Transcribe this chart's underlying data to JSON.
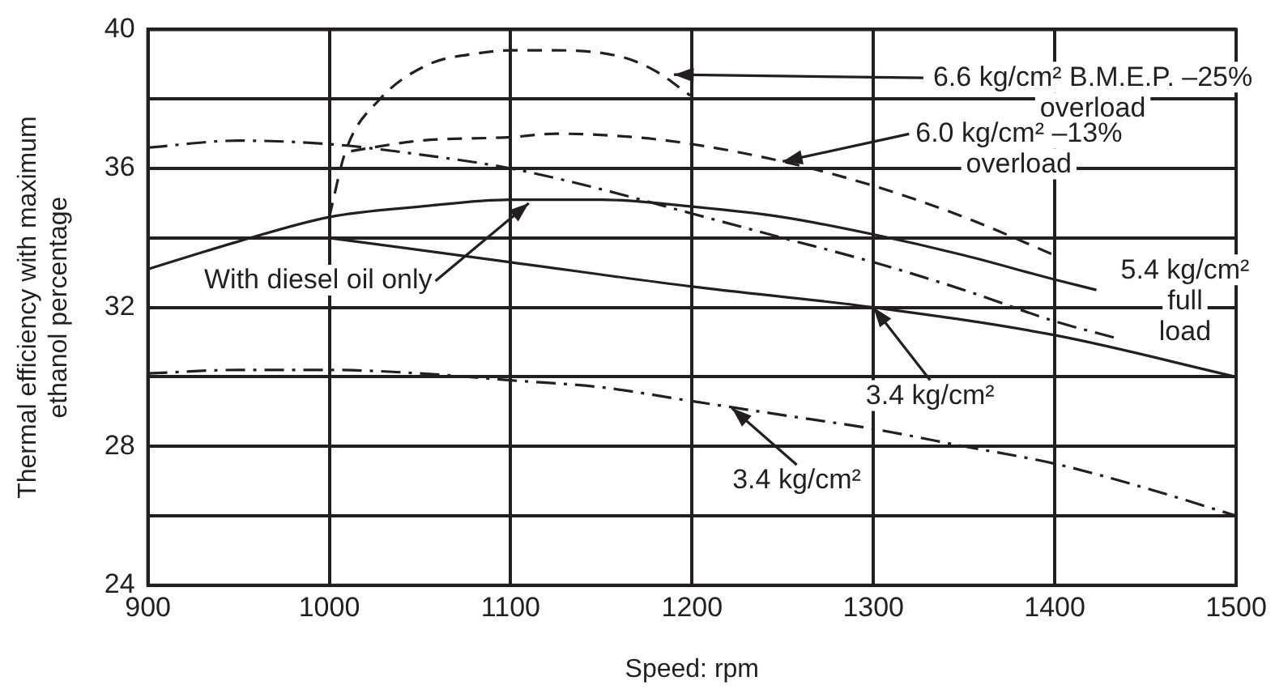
{
  "chart_data": {
    "type": "line",
    "xlabel": "Speed: rpm",
    "ylabel": "Thermal efficiency with maximum\nethanol percentage",
    "xlim": [
      900,
      1500
    ],
    "xticks": [
      900,
      1000,
      1100,
      1200,
      1300,
      1400,
      1500
    ],
    "ylim": [
      24,
      40
    ],
    "yticks": [
      24,
      {
        "value": 26,
        "label": null
      },
      28,
      {
        "value": 30,
        "label": null
      },
      32,
      {
        "value": 34,
        "label": null
      },
      36,
      {
        "value": 38,
        "label": null
      },
      40
    ],
    "grid": true,
    "legend": false,
    "marker": "none",
    "series": [
      {
        "color": "#231f20",
        "line_style": "dashed",
        "x": [
          1000,
          1009,
          1028,
          1055,
          1080,
          1101,
          1125,
          1162,
          1180,
          1199
        ],
        "values": [
          34.6,
          36.5,
          38.0,
          39.0,
          39.3,
          39.4,
          39.4,
          39.2,
          38.8,
          38.1
        ]
      },
      {
        "color": "#231f20",
        "line_style": "dashed",
        "x": [
          1012,
          1050,
          1100,
          1125,
          1168,
          1200,
          1250,
          1300,
          1350,
          1400
        ],
        "values": [
          36.5,
          36.8,
          36.9,
          37.0,
          36.9,
          36.7,
          36.2,
          35.5,
          34.6,
          33.5
        ]
      },
      {
        "color": "#231f20",
        "line_style": "solid",
        "x": [
          900,
          950,
          1000,
          1050,
          1100,
          1150,
          1200,
          1250,
          1300,
          1350,
          1400,
          1423
        ],
        "values": [
          33.1,
          33.9,
          34.6,
          34.9,
          35.1,
          35.1,
          34.9,
          34.6,
          34.1,
          33.5,
          32.8,
          32.5
        ]
      },
      {
        "color": "#231f20",
        "line_style": "dashdot",
        "x": [
          900,
          950,
          1000,
          1050,
          1100,
          1150,
          1200,
          1250,
          1300,
          1350,
          1400,
          1435
        ],
        "values": [
          36.6,
          36.8,
          36.7,
          36.4,
          36.0,
          35.4,
          34.7,
          34.0,
          33.3,
          32.5,
          31.6,
          31.1
        ]
      },
      {
        "color": "#231f20",
        "line_style": "solid",
        "x": [
          1000,
          1100,
          1200,
          1300,
          1400,
          1500
        ],
        "values": [
          34.0,
          33.3,
          32.6,
          32.0,
          31.2,
          30.0
        ]
      },
      {
        "color": "#231f20",
        "line_style": "dashdot",
        "x": [
          900,
          950,
          1000,
          1050,
          1100,
          1150,
          1200,
          1250,
          1300,
          1350,
          1400,
          1450,
          1500
        ],
        "values": [
          30.1,
          30.2,
          30.2,
          30.1,
          29.9,
          29.7,
          29.3,
          28.9,
          28.5,
          28.0,
          27.5,
          26.8,
          26.0
        ]
      }
    ],
    "annotations": [
      {
        "text": "6.6 kg/cm² B.M.E.P. –25%\noverload",
        "x": 1190,
        "y": 38.7
      },
      {
        "text": "6.0 kg/cm² –13%\noverload",
        "x": 1250,
        "y": 36.2
      },
      {
        "text": "5.4 kg/cm²\nfull\nload",
        "x": 1423,
        "y": 32.5
      },
      {
        "text": "With diesel oil only",
        "x": 1110,
        "y": 35.0
      },
      {
        "text": "3.4 kg/cm²",
        "x": 1300,
        "y": 32.0
      },
      {
        "text": "3.4 kg/cm²",
        "x": 1222,
        "y": 29.1
      }
    ]
  }
}
